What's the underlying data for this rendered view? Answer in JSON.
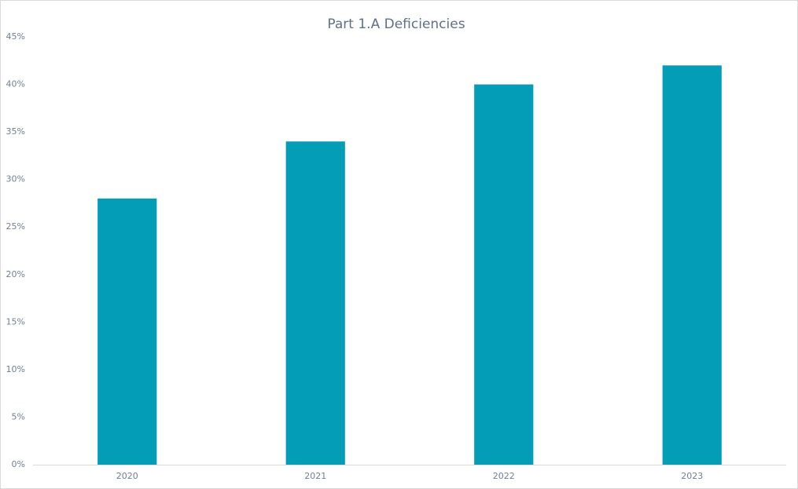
{
  "chart_data": {
    "type": "bar",
    "title": "Part 1.A Deficiencies",
    "categories": [
      "2020",
      "2021",
      "2022",
      "2023"
    ],
    "values": [
      28,
      34,
      40,
      42
    ],
    "color": "#049db8",
    "ylim": [
      0,
      45
    ],
    "yticks": [
      {
        "value": 0,
        "label": "0%"
      },
      {
        "value": 5,
        "label": "5%"
      },
      {
        "value": 10,
        "label": "10%"
      },
      {
        "value": 15,
        "label": "15%"
      },
      {
        "value": 20,
        "label": "20%"
      },
      {
        "value": 25,
        "label": "25%"
      },
      {
        "value": 30,
        "label": "30%"
      },
      {
        "value": 35,
        "label": "35%"
      },
      {
        "value": 40,
        "label": "40%"
      },
      {
        "value": 45,
        "label": "45%"
      }
    ],
    "grid": false
  }
}
